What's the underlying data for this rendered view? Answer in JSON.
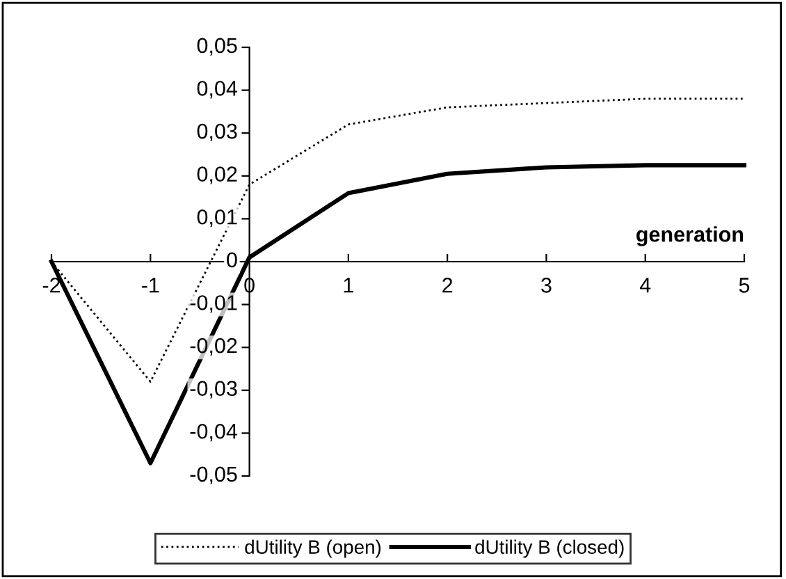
{
  "chart_data": {
    "type": "line",
    "xlabel": "generation",
    "x": [
      -2,
      -1,
      0,
      1,
      2,
      3,
      4,
      5
    ],
    "series": [
      {
        "name": "dUtility B (open)",
        "color": "#000000",
        "line_style": "dotted",
        "values": [
          0,
          -0.028,
          0.018,
          0.032,
          0.036,
          0.037,
          0.038,
          0.038
        ]
      },
      {
        "name": "dUtility B (closed)",
        "color": "#000000",
        "line_style": "solid",
        "values": [
          0,
          -0.047,
          0.001,
          0.016,
          0.0205,
          0.022,
          0.0225,
          0.0225
        ]
      }
    ],
    "xlim": [
      -2,
      5
    ],
    "xticks": [
      -2,
      -1,
      0,
      1,
      2,
      3,
      4,
      5
    ],
    "ylim": [
      -0.05,
      0.05
    ],
    "yticks": [
      {
        "value": -0.05,
        "label": "-0,05"
      },
      {
        "value": -0.04,
        "label": "-0,04"
      },
      {
        "value": -0.03,
        "label": "-0,03"
      },
      {
        "value": -0.02,
        "label": "-0,02"
      },
      {
        "value": -0.01,
        "label": "-0,01"
      },
      {
        "value": 0,
        "label": "0"
      },
      {
        "value": 0.01,
        "label": "0,01"
      },
      {
        "value": 0.02,
        "label": "0,02"
      },
      {
        "value": 0.03,
        "label": "0,03"
      },
      {
        "value": 0.04,
        "label": "0,04"
      },
      {
        "value": 0.05,
        "label": "0,05"
      }
    ],
    "grid": false,
    "legend": "bottom",
    "marker": "none"
  }
}
